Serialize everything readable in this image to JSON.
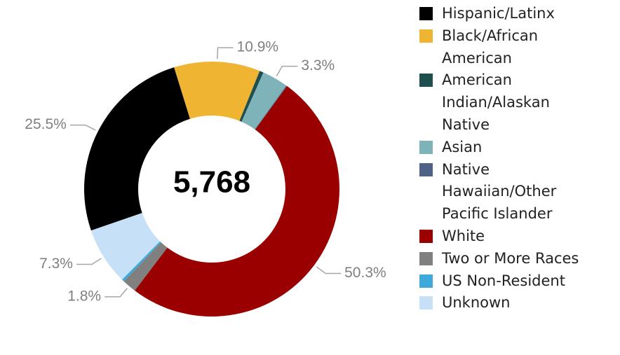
{
  "chart_data": {
    "type": "donut",
    "center_label": "5,768",
    "categories": [
      "Hispanic/Latinx",
      "Black/African American",
      "American Indian/Alaskan Native",
      "Asian",
      "Native Hawaiian/Other Pacific Islander",
      "White",
      "Two or More Races",
      "US Non-Resident",
      "Unknown"
    ],
    "values": [
      25.5,
      10.9,
      0.5,
      3.3,
      0.1,
      50.3,
      1.8,
      0.3,
      7.3
    ],
    "value_labels": [
      "25.5%",
      "10.9%",
      null,
      "3.3%",
      null,
      "50.3%",
      "1.8%",
      null,
      "7.3%"
    ],
    "colors": [
      "#000000",
      "#f0b433",
      "#1f4e4f",
      "#7db3b9",
      "#4e6287",
      "#9b0000",
      "#808080",
      "#40a9dc",
      "#c5e0f7"
    ],
    "legend": "right"
  }
}
